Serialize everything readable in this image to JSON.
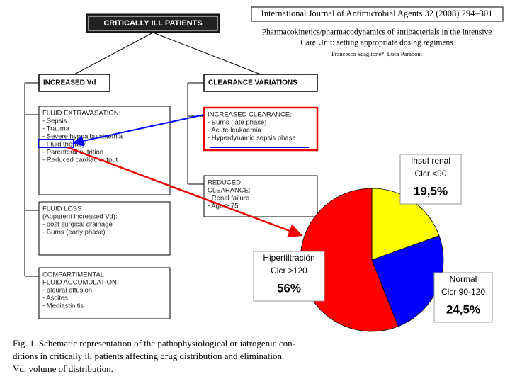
{
  "header": {
    "journal": "International Journal of Antimicrobial Agents 32 (2008) 294–301",
    "title_lines": [
      "Pharmacokinetics/pharmacodynamics of antibacterials in the Intensive",
      "Care Unit: setting appropriate dosing regimens"
    ],
    "authors": "Francesco Scaglione*, Luca Paraboni"
  },
  "diagram": {
    "root": "CRITICALLY ILL PATIENTS",
    "branches": [
      {
        "label": "INCREASED Vd",
        "boxes": [
          {
            "lines": [
              "FLUID EXTRAVASATION:",
              "- Sepsis",
              "- Trauma",
              "- Severe hypoalbuminemia",
              "- Fluid therapy",
              "- Parenteral nutrition",
              "- Reduced cardiac output"
            ]
          },
          {
            "lines": [
              "FLUID LOSS",
              "(Apparent increased Vd):",
              "- post surgical drainage",
              "- Burns (early phase)"
            ]
          },
          {
            "lines": [
              "COMPARTIMENTAL",
              "FLUID ACCUMULATION:",
              "- pleural effusion",
              "- Ascites",
              "- Mediastinitis"
            ]
          }
        ]
      },
      {
        "label": "CLEARANCE VARIATIONS",
        "boxes": [
          {
            "lines": [
              "INCREASED CLEARANCE:",
              "- Burns (late phase)",
              "- Acute leukaemia",
              "- Hyperdynamic sepsis phase"
            ]
          },
          {
            "lines": [
              "REDUCED",
              "CLEARANCE:",
              "- Renal failure",
              "- Age > 75"
            ]
          }
        ]
      }
    ]
  },
  "caption": {
    "lines": [
      "Fig. 1.  Schematic representation of the pathophysiological or iatrogenic con-",
      "ditions in critically ill patients affecting drug distribution and elimination.",
      "Vd, volume of distribution."
    ]
  },
  "chart_data": {
    "type": "pie",
    "categories": [
      "Insuf renal",
      "Normal",
      "Hiperfiltración"
    ],
    "subcategories": [
      "Clcr <90",
      "Clcr 90-120",
      "Clcr >120"
    ],
    "values": [
      19.5,
      24.5,
      56
    ],
    "value_labels": [
      "19,5%",
      "24,5%",
      "56%"
    ],
    "colors": [
      "#ffff00",
      "#0000ff",
      "#ff0000"
    ]
  }
}
